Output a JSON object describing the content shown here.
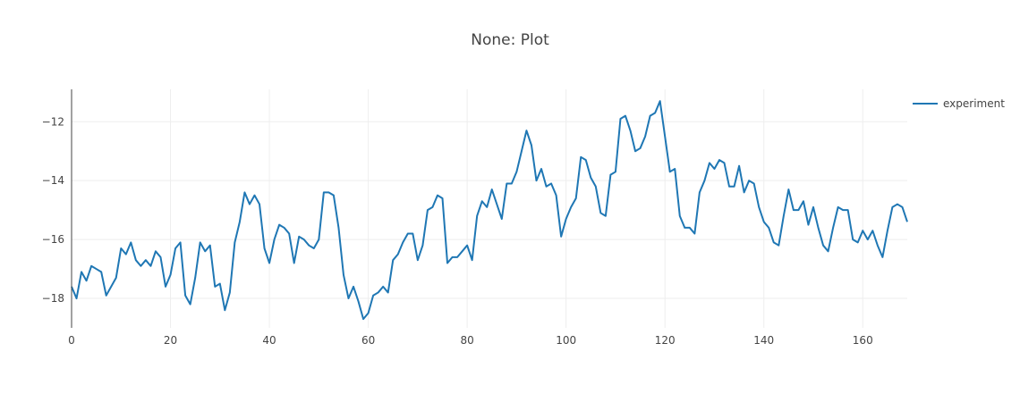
{
  "chart_data": {
    "type": "line",
    "title": "None: Plot",
    "xlabel": "",
    "ylabel": "",
    "xlim": [
      0,
      169
    ],
    "ylim": [
      -19.0,
      -10.9
    ],
    "xticks": [
      0,
      20,
      40,
      60,
      80,
      100,
      120,
      140,
      160
    ],
    "yticks": [
      -18,
      -16,
      -14,
      -12
    ],
    "grid": true,
    "legend": {
      "position": "top-right",
      "entries": [
        "experiment"
      ]
    },
    "series": [
      {
        "name": "experiment",
        "color": "#1f77b4",
        "x": [
          0,
          1,
          2,
          3,
          4,
          5,
          6,
          7,
          8,
          9,
          10,
          11,
          12,
          13,
          14,
          15,
          16,
          17,
          18,
          19,
          20,
          21,
          22,
          23,
          24,
          25,
          26,
          27,
          28,
          29,
          30,
          31,
          32,
          33,
          34,
          35,
          36,
          37,
          38,
          39,
          40,
          41,
          42,
          43,
          44,
          45,
          46,
          47,
          48,
          49,
          50,
          51,
          52,
          53,
          54,
          55,
          56,
          57,
          58,
          59,
          60,
          61,
          62,
          63,
          64,
          65,
          66,
          67,
          68,
          69,
          70,
          71,
          72,
          73,
          74,
          75,
          76,
          77,
          78,
          79,
          80,
          81,
          82,
          83,
          84,
          85,
          86,
          87,
          88,
          89,
          90,
          91,
          92,
          93,
          94,
          95,
          96,
          97,
          98,
          99,
          100,
          101,
          102,
          103,
          104,
          105,
          106,
          107,
          108,
          109,
          110,
          111,
          112,
          113,
          114,
          115,
          116,
          117,
          118,
          119,
          120,
          121,
          122,
          123,
          124,
          125,
          126,
          127,
          128,
          129,
          130,
          131,
          132,
          133,
          134,
          135,
          136,
          137,
          138,
          139,
          140,
          141,
          142,
          143,
          144,
          145,
          146,
          147,
          148,
          149,
          150,
          151,
          152,
          153,
          154,
          155,
          156,
          157,
          158,
          159,
          160,
          161,
          162,
          163,
          164,
          165,
          166,
          167,
          168,
          169
        ],
        "values": [
          -17.6,
          -18.0,
          -17.1,
          -17.4,
          -16.9,
          -17.0,
          -17.1,
          -17.9,
          -17.6,
          -17.3,
          -16.3,
          -16.5,
          -16.1,
          -16.7,
          -16.9,
          -16.7,
          -16.9,
          -16.4,
          -16.6,
          -17.6,
          -17.2,
          -16.3,
          -16.1,
          -17.9,
          -18.2,
          -17.3,
          -16.1,
          -16.4,
          -16.2,
          -17.6,
          -17.5,
          -18.4,
          -17.8,
          -16.1,
          -15.4,
          -14.4,
          -14.8,
          -14.5,
          -14.8,
          -16.3,
          -16.8,
          -16.0,
          -15.5,
          -15.6,
          -15.8,
          -16.8,
          -15.9,
          -16.0,
          -16.2,
          -16.3,
          -16.0,
          -14.4,
          -14.4,
          -14.5,
          -15.6,
          -17.2,
          -18.0,
          -17.6,
          -18.1,
          -18.7,
          -18.5,
          -17.9,
          -17.8,
          -17.6,
          -17.8,
          -16.7,
          -16.5,
          -16.1,
          -15.8,
          -15.8,
          -16.7,
          -16.2,
          -15.0,
          -14.9,
          -14.5,
          -14.6,
          -16.8,
          -16.6,
          -16.6,
          -16.4,
          -16.2,
          -16.7,
          -15.2,
          -14.7,
          -14.9,
          -14.3,
          -14.8,
          -15.3,
          -14.1,
          -14.1,
          -13.7,
          -13.0,
          -12.3,
          -12.8,
          -14.0,
          -13.6,
          -14.2,
          -14.1,
          -14.5,
          -15.9,
          -15.3,
          -14.9,
          -14.6,
          -13.2,
          -13.3,
          -13.9,
          -14.2,
          -15.1,
          -15.2,
          -13.8,
          -13.7,
          -11.9,
          -11.8,
          -12.3,
          -13.0,
          -12.9,
          -12.5,
          -11.8,
          -11.7,
          -11.3,
          -12.5,
          -13.7,
          -13.6,
          -15.2,
          -15.6,
          -15.6,
          -15.8,
          -14.4,
          -14.0,
          -13.4,
          -13.6,
          -13.3,
          -13.4,
          -14.2,
          -14.2,
          -13.5,
          -14.4,
          -14.0,
          -14.1,
          -14.9,
          -15.4,
          -15.6,
          -16.1,
          -16.2,
          -15.2,
          -14.3,
          -15.0,
          -15.0,
          -14.7,
          -15.5,
          -14.9,
          -15.6,
          -16.2,
          -16.4,
          -15.6,
          -14.9,
          -15.0,
          -15.0,
          -16.0,
          -16.1,
          -15.7,
          -16.0,
          -15.7,
          -16.2,
          -16.6,
          -15.7,
          -14.9,
          -14.8,
          -14.9,
          -15.4
        ]
      }
    ]
  }
}
